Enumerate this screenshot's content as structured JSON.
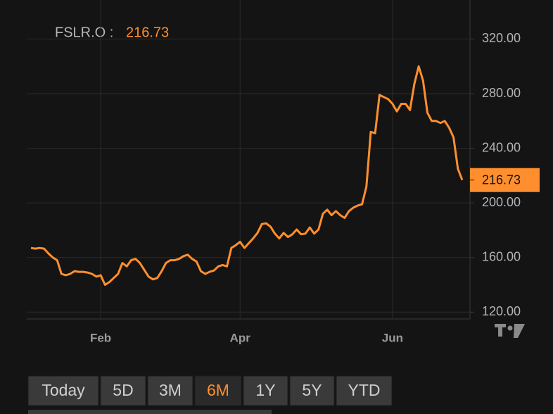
{
  "chart_data": {
    "type": "line",
    "title": "FSLR.O :",
    "color": "#ff8f2e",
    "categories": [
      null,
      null,
      null,
      null,
      null,
      null,
      null,
      null,
      null,
      null,
      null,
      null,
      null,
      null,
      null,
      null,
      "Feb",
      null,
      null,
      null,
      null,
      null,
      null,
      null,
      null,
      null,
      null,
      null,
      null,
      null,
      null,
      null,
      null,
      null,
      null,
      null,
      null,
      null,
      null,
      null,
      null,
      null,
      null,
      null,
      null,
      null,
      null,
      null,
      "Apr",
      null,
      null,
      null,
      null,
      null,
      null,
      null,
      null,
      null,
      null,
      null,
      null,
      null,
      null,
      null,
      null,
      null,
      null,
      null,
      null,
      null,
      null,
      null,
      null,
      null,
      null,
      null,
      null,
      null,
      null,
      null,
      null,
      null,
      null,
      "Jun",
      null,
      null,
      null,
      null,
      null,
      null,
      null,
      null,
      null,
      null,
      null,
      null,
      null,
      null,
      null,
      null
    ],
    "values": [
      167,
      166.5,
      167,
      166.5,
      163,
      160,
      158,
      148,
      147,
      148,
      150,
      149.5,
      149.5,
      149,
      148,
      146,
      147,
      140,
      142,
      145,
      148,
      156,
      153.5,
      158,
      159,
      156,
      151,
      146,
      144,
      145,
      150,
      156,
      158,
      158,
      159,
      161,
      162,
      159,
      157,
      150,
      148,
      149.5,
      150.5,
      153.5,
      154.5,
      153.5,
      167,
      169,
      171.5,
      167,
      170.5,
      174,
      178,
      184.5,
      185,
      182.5,
      177.5,
      174,
      178,
      175,
      177,
      180.5,
      177,
      177.5,
      182,
      177.5,
      180.5,
      192,
      195,
      191,
      194,
      191,
      189,
      194,
      196.5,
      198,
      199,
      212,
      252,
      251,
      279,
      277.5,
      276,
      272.5,
      267,
      272.5,
      272.5,
      268,
      287,
      300,
      289.5,
      266,
      260,
      260,
      258.5,
      260,
      255,
      248,
      225,
      216.73
    ],
    "value_labels": {
      "99": "216.73"
    },
    "ylim": [
      115,
      346
    ],
    "yticks": [
      {
        "value": 120,
        "label": "120.00"
      },
      {
        "value": 160,
        "label": "160.00"
      },
      {
        "value": 200,
        "label": "200.00"
      },
      {
        "value": 240,
        "label": "240.00"
      },
      {
        "value": 280,
        "label": "280.00"
      },
      {
        "value": 320,
        "label": "320.00"
      }
    ],
    "grid": true
  },
  "range_buttons": [
    "Today",
    "5D",
    "3M",
    "6M",
    "1Y",
    "5Y",
    "YTD"
  ],
  "active_range": "6M"
}
